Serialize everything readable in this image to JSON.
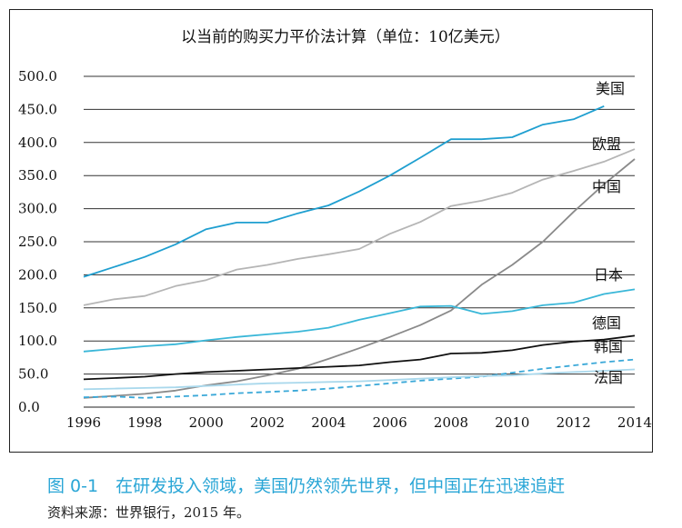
{
  "caption": "图 0-1　在研发投入领域，美国仍然领先世界，但中国正在迅速追赶",
  "source": "资料来源：世界银行，2015 年。",
  "chart_data": {
    "type": "line",
    "title": "以当前的购买力平价法计算（单位：10亿美元）",
    "xlabel": "",
    "ylabel": "",
    "xlim": [
      1996,
      2014
    ],
    "ylim": [
      0,
      500
    ],
    "x_ticks": [
      "1996",
      "1998",
      "2000",
      "2002",
      "2004",
      "2006",
      "2008",
      "2010",
      "2012",
      "2014"
    ],
    "y_ticks": [
      "0.0",
      "50.0",
      "100.0",
      "150.0",
      "200.0",
      "250.0",
      "300.0",
      "350.0",
      "400.0",
      "450.0",
      "500.0"
    ],
    "grid": "horizontal",
    "legend": "labels at line ends",
    "series": [
      {
        "name": "美国",
        "color": "#1f9fd0",
        "dash": "",
        "x": [
          1996,
          1997,
          1998,
          1999,
          2000,
          2001,
          2002,
          2003,
          2004,
          2005,
          2006,
          2007,
          2008,
          2009,
          2010,
          2011,
          2012,
          2013
        ],
        "values": [
          197,
          212,
          227,
          246,
          269,
          279,
          279,
          293,
          305,
          326,
          350,
          377,
          405,
          405,
          408,
          427,
          435,
          455
        ]
      },
      {
        "name": "欧盟",
        "color": "#b5b5b5",
        "dash": "",
        "x": [
          1996,
          1997,
          1998,
          1999,
          2000,
          2001,
          2002,
          2003,
          2004,
          2005,
          2006,
          2007,
          2008,
          2009,
          2010,
          2011,
          2012,
          2013,
          2014
        ],
        "values": [
          154,
          163,
          168,
          183,
          192,
          208,
          215,
          224,
          231,
          239,
          262,
          280,
          304,
          312,
          324,
          344,
          357,
          371,
          390
        ]
      },
      {
        "name": "中国",
        "color": "#8a8a8a",
        "dash": "",
        "x": [
          1996,
          1997,
          1998,
          1999,
          2000,
          2001,
          2002,
          2003,
          2004,
          2005,
          2006,
          2007,
          2008,
          2009,
          2010,
          2011,
          2012,
          2013,
          2014
        ],
        "values": [
          14,
          17,
          20,
          25,
          33,
          39,
          48,
          58,
          73,
          89,
          106,
          124,
          146,
          185,
          215,
          250,
          295,
          337,
          375
        ]
      },
      {
        "name": "日本",
        "color": "#3ab7d8",
        "dash": "",
        "x": [
          1996,
          1997,
          1998,
          1999,
          2000,
          2001,
          2002,
          2003,
          2004,
          2005,
          2006,
          2007,
          2008,
          2009,
          2010,
          2011,
          2012,
          2013,
          2014
        ],
        "values": [
          84,
          88,
          92,
          95,
          101,
          106,
          110,
          114,
          120,
          132,
          142,
          152,
          153,
          141,
          145,
          154,
          158,
          171,
          178
        ]
      },
      {
        "name": "德国",
        "color": "#111111",
        "dash": "",
        "x": [
          1996,
          1997,
          1998,
          1999,
          2000,
          2001,
          2002,
          2003,
          2004,
          2005,
          2006,
          2007,
          2008,
          2009,
          2010,
          2011,
          2012,
          2013,
          2014
        ],
        "values": [
          42,
          44,
          46,
          50,
          53,
          55,
          57,
          59,
          61,
          63,
          68,
          72,
          81,
          82,
          86,
          94,
          99,
          102,
          108
        ]
      },
      {
        "name": "韩国",
        "color": "#3aa8d8",
        "dash": "6,4",
        "x": [
          1996,
          1997,
          1998,
          1999,
          2000,
          2001,
          2002,
          2003,
          2004,
          2005,
          2006,
          2007,
          2008,
          2009,
          2010,
          2011,
          2012,
          2013,
          2014
        ],
        "values": [
          15,
          16,
          14,
          16,
          18,
          21,
          23,
          25,
          28,
          32,
          36,
          40,
          43,
          46,
          52,
          58,
          63,
          68,
          72
        ]
      },
      {
        "name": "法国",
        "color": "#a9d8ec",
        "dash": "",
        "x": [
          1996,
          1997,
          1998,
          1999,
          2000,
          2001,
          2002,
          2003,
          2004,
          2005,
          2006,
          2007,
          2008,
          2009,
          2010,
          2011,
          2012,
          2013,
          2014
        ],
        "values": [
          27,
          28,
          29,
          30,
          32,
          34,
          36,
          37,
          38,
          39,
          41,
          43,
          45,
          47,
          48,
          51,
          53,
          55,
          57
        ]
      }
    ]
  }
}
